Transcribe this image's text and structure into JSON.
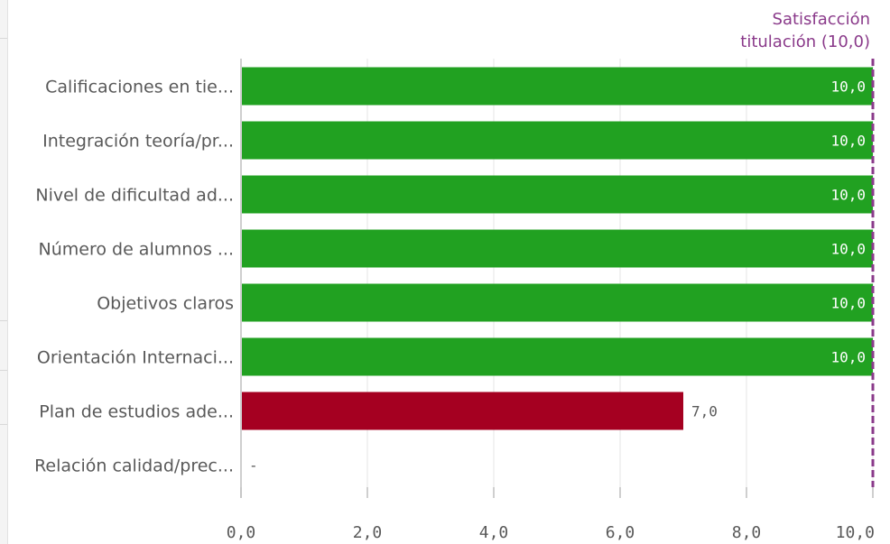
{
  "chart_data": {
    "type": "bar",
    "orientation": "horizontal",
    "categories": [
      "Calificaciones en tie...",
      "Integración teoría/pr...",
      "Nivel de dificultad ad...",
      "Número de alumnos ...",
      "Objetivos claros",
      "Orientación Internaci...",
      "Plan de estudios ade...",
      "Relación calidad/prec..."
    ],
    "values": [
      10.0,
      10.0,
      10.0,
      10.0,
      10.0,
      10.0,
      7.0,
      null
    ],
    "value_labels": [
      "10,0",
      "10,0",
      "10,0",
      "10,0",
      "10,0",
      "10,0",
      "7,0",
      "-"
    ],
    "bar_colors": [
      "#21a121",
      "#21a121",
      "#21a121",
      "#21a121",
      "#21a121",
      "#21a121",
      "#a50021",
      null
    ],
    "xlim": [
      0,
      10
    ],
    "x_ticks": [
      0,
      2,
      4,
      6,
      8,
      10
    ],
    "x_tick_labels": [
      "0,0",
      "2,0",
      "4,0",
      "6,0",
      "8,0",
      "10,0"
    ],
    "grid": true,
    "reference_line": {
      "value": 10.0,
      "label_lines": [
        "Satisfacción",
        "titulación (10,0)"
      ],
      "color": "#8a3a8a",
      "style": "dashed"
    },
    "colors": {
      "good": "#21a121",
      "bad": "#a50021",
      "grid": "#e6e6e6",
      "axis": "#bfbfbf",
      "text": "#595959",
      "label_inside": "#ffffff",
      "label_outside": "#595959"
    }
  }
}
